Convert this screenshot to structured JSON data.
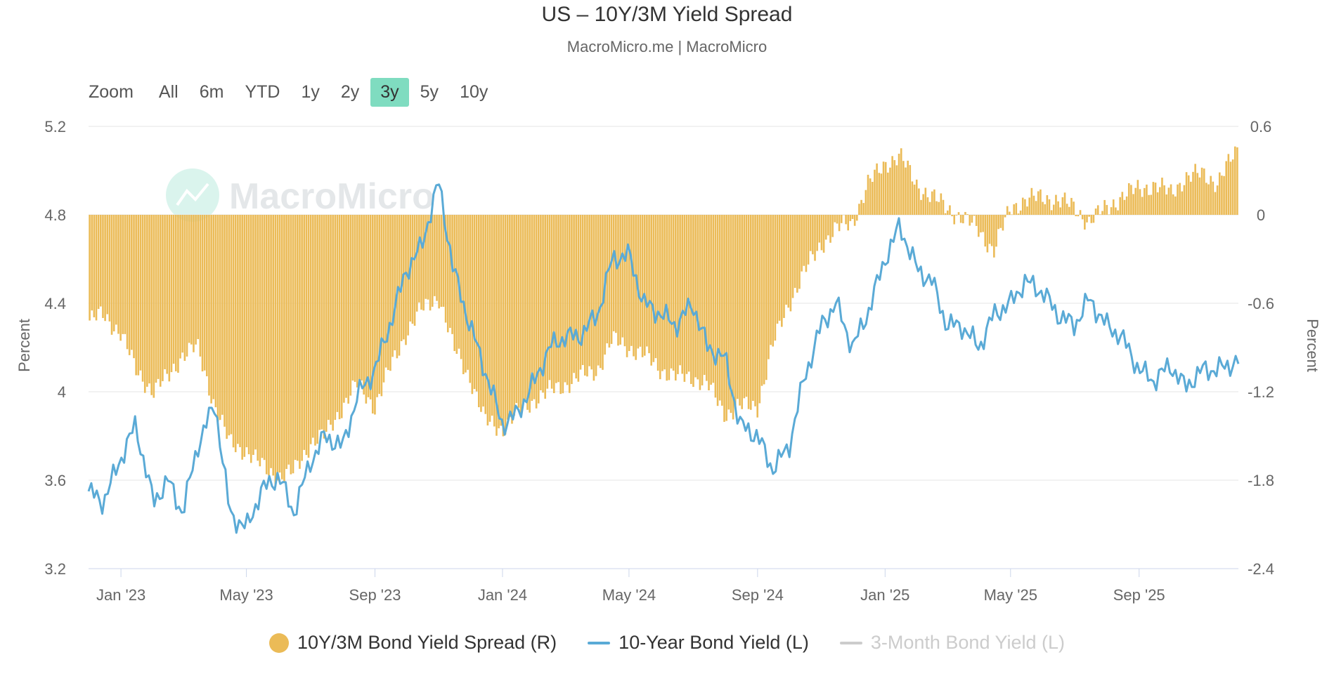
{
  "chart_data": {
    "type": "bar+line",
    "title": "US – 10Y/3M Yield Spread",
    "subtitle": "MacroMicro.me | MacroMicro",
    "watermark": "MacroMicro",
    "zoom": {
      "label": "Zoom",
      "options": [
        "All",
        "6m",
        "YTD",
        "1y",
        "2y",
        "3y",
        "5y",
        "10y"
      ],
      "selected": "3y"
    },
    "left_axis": {
      "label": "Percent",
      "ticks": [
        "5.2",
        "4.8",
        "4.4",
        "4",
        "3.6",
        "3.2"
      ],
      "range": [
        3.2,
        5.2
      ]
    },
    "right_axis": {
      "label": "Percent",
      "ticks": [
        "0.6",
        "0",
        "-0.6",
        "-1.2",
        "-1.8",
        "-2.4"
      ],
      "range": [
        -2.4,
        0.6
      ]
    },
    "x_axis": {
      "start": "2022-12-01",
      "end": "2025-12-05",
      "ticks": [
        {
          "label": "Jan '23",
          "date": "2023-01-01"
        },
        {
          "label": "May '23",
          "date": "2023-05-01"
        },
        {
          "label": "Sep '23",
          "date": "2023-09-01"
        },
        {
          "label": "Jan '24",
          "date": "2024-01-01"
        },
        {
          "label": "May '24",
          "date": "2024-05-01"
        },
        {
          "label": "Sep '24",
          "date": "2024-09-01"
        },
        {
          "label": "Jan '25",
          "date": "2025-01-01"
        },
        {
          "label": "May '25",
          "date": "2025-05-01"
        },
        {
          "label": "Sep '25",
          "date": "2025-09-01"
        }
      ]
    },
    "series": [
      {
        "name": "10Y/3M Bond Yield Spread (R)",
        "type": "bar",
        "axis": "right",
        "color": "#ebbb57",
        "points": [
          [
            "2022-12-01",
            -0.72
          ],
          [
            "2022-12-15",
            -0.68
          ],
          [
            "2023-01-01",
            -0.8
          ],
          [
            "2023-01-15",
            -1.05
          ],
          [
            "2023-02-01",
            -1.2
          ],
          [
            "2023-02-15",
            -1.1
          ],
          [
            "2023-03-01",
            -0.95
          ],
          [
            "2023-03-15",
            -0.9
          ],
          [
            "2023-04-01",
            -1.3
          ],
          [
            "2023-04-15",
            -1.55
          ],
          [
            "2023-05-01",
            -1.6
          ],
          [
            "2023-05-15",
            -1.7
          ],
          [
            "2023-06-01",
            -1.78
          ],
          [
            "2023-06-15",
            -1.75
          ],
          [
            "2023-07-01",
            -1.55
          ],
          [
            "2023-07-15",
            -1.5
          ],
          [
            "2023-08-01",
            -1.3
          ],
          [
            "2023-08-15",
            -1.15
          ],
          [
            "2023-09-01",
            -1.3
          ],
          [
            "2023-09-15",
            -1.05
          ],
          [
            "2023-10-01",
            -0.8
          ],
          [
            "2023-10-15",
            -0.65
          ],
          [
            "2023-11-01",
            -0.55
          ],
          [
            "2023-11-15",
            -0.9
          ],
          [
            "2023-12-01",
            -1.1
          ],
          [
            "2023-12-15",
            -1.4
          ],
          [
            "2024-01-01",
            -1.45
          ],
          [
            "2024-01-15",
            -1.35
          ],
          [
            "2024-02-01",
            -1.25
          ],
          [
            "2024-02-15",
            -1.2
          ],
          [
            "2024-03-01",
            -1.15
          ],
          [
            "2024-03-15",
            -1.1
          ],
          [
            "2024-04-01",
            -1.05
          ],
          [
            "2024-04-15",
            -0.85
          ],
          [
            "2024-05-01",
            -0.9
          ],
          [
            "2024-05-15",
            -0.95
          ],
          [
            "2024-06-01",
            -1.05
          ],
          [
            "2024-06-15",
            -1.1
          ],
          [
            "2024-07-01",
            -1.1
          ],
          [
            "2024-07-15",
            -1.15
          ],
          [
            "2024-08-01",
            -1.35
          ],
          [
            "2024-08-15",
            -1.3
          ],
          [
            "2024-09-01",
            -1.3
          ],
          [
            "2024-09-15",
            -0.9
          ],
          [
            "2024-10-01",
            -0.6
          ],
          [
            "2024-10-15",
            -0.4
          ],
          [
            "2024-11-01",
            -0.2
          ],
          [
            "2024-11-15",
            -0.1
          ],
          [
            "2024-12-01",
            -0.05
          ],
          [
            "2024-12-15",
            0.2
          ],
          [
            "2025-01-01",
            0.35
          ],
          [
            "2025-01-15",
            0.4
          ],
          [
            "2025-02-01",
            0.2
          ],
          [
            "2025-02-15",
            0.12
          ],
          [
            "2025-03-01",
            0.05
          ],
          [
            "2025-03-15",
            -0.02
          ],
          [
            "2025-04-01",
            -0.1
          ],
          [
            "2025-04-15",
            -0.25
          ],
          [
            "2025-05-01",
            0.05
          ],
          [
            "2025-05-15",
            0.1
          ],
          [
            "2025-06-01",
            0.12
          ],
          [
            "2025-06-15",
            0.1
          ],
          [
            "2025-07-01",
            0.05
          ],
          [
            "2025-07-15",
            -0.05
          ],
          [
            "2025-08-01",
            0.05
          ],
          [
            "2025-08-15",
            0.12
          ],
          [
            "2025-09-01",
            0.18
          ],
          [
            "2025-09-15",
            0.2
          ],
          [
            "2025-10-01",
            0.15
          ],
          [
            "2025-10-15",
            0.25
          ],
          [
            "2025-11-01",
            0.28
          ],
          [
            "2025-11-15",
            0.22
          ],
          [
            "2025-12-05",
            0.45
          ]
        ]
      },
      {
        "name": "10-Year Bond Yield (L)",
        "type": "line",
        "axis": "left",
        "color": "#5aaad6",
        "points": [
          [
            "2022-12-01",
            3.55
          ],
          [
            "2022-12-15",
            3.5
          ],
          [
            "2023-01-01",
            3.7
          ],
          [
            "2023-01-15",
            3.85
          ],
          [
            "2023-02-01",
            3.5
          ],
          [
            "2023-02-15",
            3.6
          ],
          [
            "2023-03-01",
            3.45
          ],
          [
            "2023-03-15",
            3.75
          ],
          [
            "2023-04-01",
            3.95
          ],
          [
            "2023-04-15",
            3.45
          ],
          [
            "2023-05-01",
            3.38
          ],
          [
            "2023-05-15",
            3.55
          ],
          [
            "2023-06-01",
            3.62
          ],
          [
            "2023-06-15",
            3.45
          ],
          [
            "2023-07-01",
            3.68
          ],
          [
            "2023-07-15",
            3.8
          ],
          [
            "2023-08-01",
            3.75
          ],
          [
            "2023-08-15",
            3.98
          ],
          [
            "2023-09-01",
            4.1
          ],
          [
            "2023-09-15",
            4.3
          ],
          [
            "2023-10-01",
            4.55
          ],
          [
            "2023-10-15",
            4.65
          ],
          [
            "2023-11-01",
            4.95
          ],
          [
            "2023-11-15",
            4.55
          ],
          [
            "2023-12-01",
            4.3
          ],
          [
            "2023-12-15",
            4.1
          ],
          [
            "2024-01-01",
            3.85
          ],
          [
            "2024-01-15",
            3.9
          ],
          [
            "2024-02-01",
            4.05
          ],
          [
            "2024-02-15",
            4.2
          ],
          [
            "2024-03-01",
            4.25
          ],
          [
            "2024-03-15",
            4.25
          ],
          [
            "2024-04-01",
            4.35
          ],
          [
            "2024-04-15",
            4.6
          ],
          [
            "2024-05-01",
            4.62
          ],
          [
            "2024-05-15",
            4.4
          ],
          [
            "2024-06-01",
            4.35
          ],
          [
            "2024-06-15",
            4.3
          ],
          [
            "2024-07-01",
            4.4
          ],
          [
            "2024-07-15",
            4.2
          ],
          [
            "2024-08-01",
            4.15
          ],
          [
            "2024-08-15",
            3.85
          ],
          [
            "2024-09-01",
            3.8
          ],
          [
            "2024-09-15",
            3.65
          ],
          [
            "2024-10-01",
            3.75
          ],
          [
            "2024-10-15",
            4.05
          ],
          [
            "2024-11-01",
            4.3
          ],
          [
            "2024-11-15",
            4.4
          ],
          [
            "2024-12-01",
            4.2
          ],
          [
            "2024-12-15",
            4.35
          ],
          [
            "2025-01-01",
            4.6
          ],
          [
            "2025-01-15",
            4.75
          ],
          [
            "2025-02-01",
            4.55
          ],
          [
            "2025-02-15",
            4.5
          ],
          [
            "2025-03-01",
            4.3
          ],
          [
            "2025-03-15",
            4.3
          ],
          [
            "2025-04-01",
            4.2
          ],
          [
            "2025-04-15",
            4.35
          ],
          [
            "2025-05-01",
            4.4
          ],
          [
            "2025-05-15",
            4.5
          ],
          [
            "2025-06-01",
            4.45
          ],
          [
            "2025-06-15",
            4.35
          ],
          [
            "2025-07-01",
            4.3
          ],
          [
            "2025-07-15",
            4.42
          ],
          [
            "2025-08-01",
            4.3
          ],
          [
            "2025-08-15",
            4.25
          ],
          [
            "2025-09-01",
            4.1
          ],
          [
            "2025-09-15",
            4.05
          ],
          [
            "2025-10-01",
            4.12
          ],
          [
            "2025-10-15",
            4.02
          ],
          [
            "2025-11-01",
            4.1
          ],
          [
            "2025-11-15",
            4.1
          ],
          [
            "2025-12-05",
            4.14
          ]
        ]
      },
      {
        "name": "3-Month Bond Yield (L)",
        "type": "line",
        "axis": "left",
        "color": "#cccccc",
        "visible": false,
        "points": []
      }
    ]
  }
}
